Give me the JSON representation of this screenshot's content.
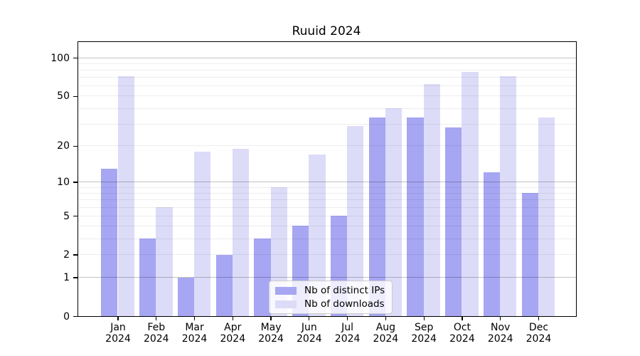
{
  "chart_data": {
    "type": "bar",
    "title": "Ruuid 2024",
    "xlabel": "",
    "ylabel": "",
    "categories": [
      "Jan\n2024",
      "Feb\n2024",
      "Mar\n2024",
      "Apr\n2024",
      "May\n2024",
      "Jun\n2024",
      "Jul\n2024",
      "Aug\n2024",
      "Sep\n2024",
      "Oct\n2024",
      "Nov\n2024",
      "Dec\n2024"
    ],
    "series": [
      {
        "name": "Nb of distinct IPs",
        "color": "#a6a6f2",
        "values": [
          13,
          3,
          1,
          2,
          3,
          4,
          5,
          34,
          34,
          28,
          12,
          8
        ]
      },
      {
        "name": "Nb of downloads",
        "color": "#dcdcf8",
        "values": [
          72,
          6,
          18,
          19,
          9,
          17,
          29,
          40,
          62,
          78,
          72,
          34
        ]
      }
    ],
    "yscale": "log1p",
    "yticks": [
      0,
      1,
      2,
      5,
      10,
      20,
      50,
      100
    ],
    "ylim": [
      0,
      133
    ],
    "grid": "on",
    "grid_minor_values": [
      2,
      3,
      4,
      5,
      6,
      7,
      8,
      9,
      20,
      30,
      40,
      50,
      60,
      70,
      80,
      90
    ],
    "grid_major_values": [
      1,
      10,
      100
    ],
    "legend_position": "lower center",
    "background_color": "#ffffff",
    "spine_color": "#000000"
  }
}
